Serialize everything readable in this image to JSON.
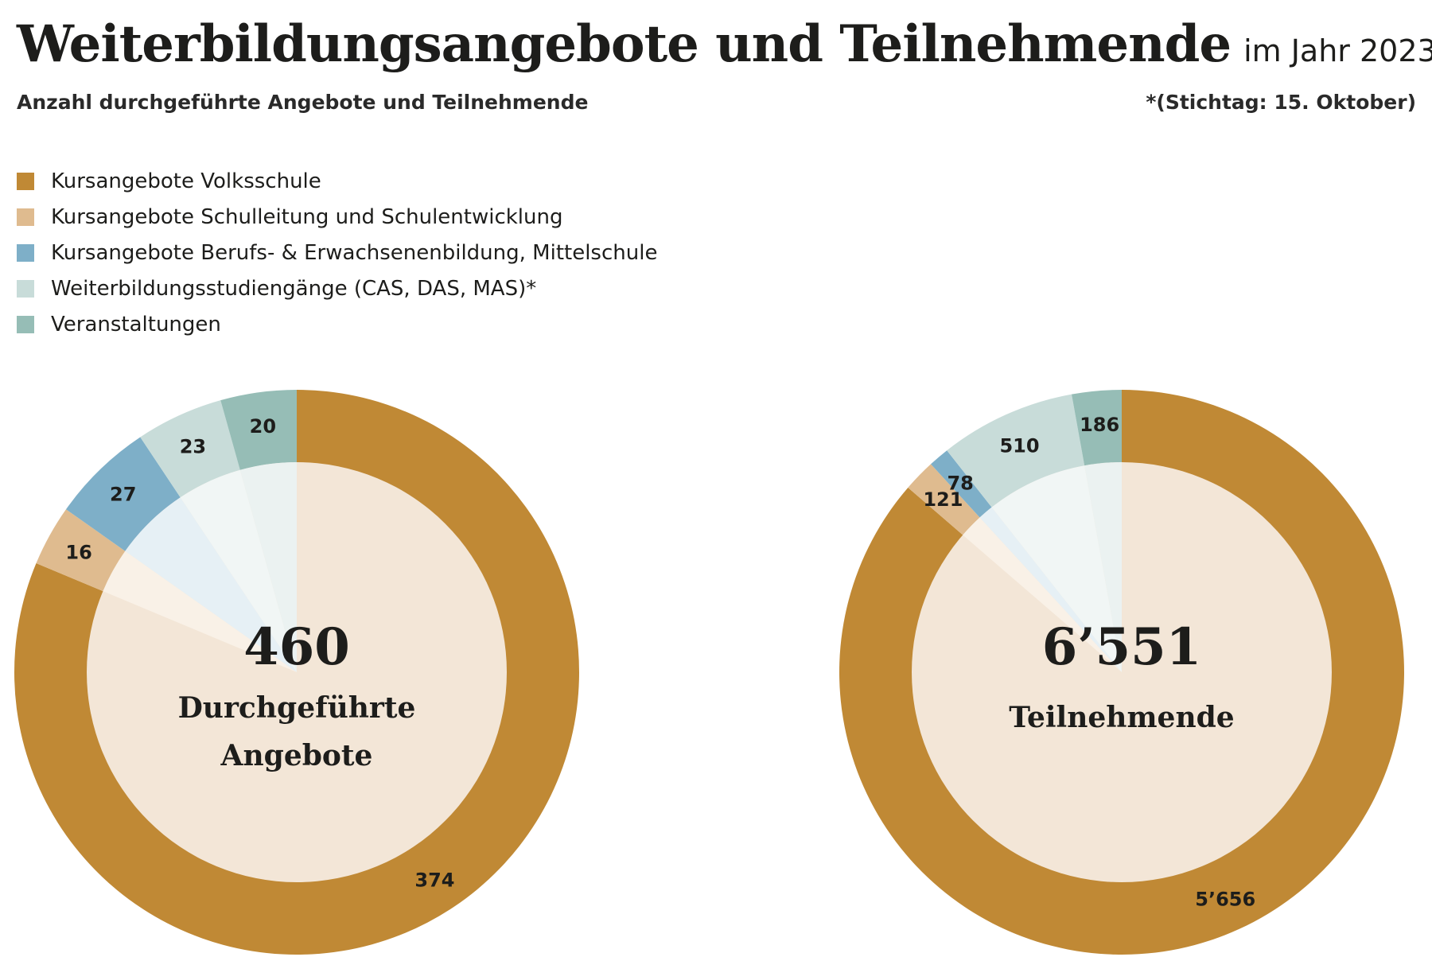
{
  "title": "Weiterbildungsangebote und Teilnehmende",
  "title_suffix": "im Jahr 2023",
  "subtitle": "Anzahl durchgeführte Angebote und Teilnehmende",
  "footnote": "*(Stichtag: 15. Oktober)",
  "legend": [
    {
      "label": "Kursangebote Volksschule",
      "color": "#c08935"
    },
    {
      "label": "Kursangebote Schulleitung und Schulentwicklung",
      "color": "#dfbb8f"
    },
    {
      "label": "Kursangebote Berufs- & Erwachsenenbildung, Mittelschule",
      "color": "#7eafc8"
    },
    {
      "label": "Weiterbildungsstudiengänge (CAS, DAS, MAS)*",
      "color": "#c8dcd9"
    },
    {
      "label": "Veranstaltungen",
      "color": "#96bdb6"
    }
  ],
  "colors": {
    "inner_base": "#f3e6d7",
    "inner_tints": [
      "#f3e6d7",
      "#f9f1e7",
      "#e6f0f5",
      "#f1f6f5",
      "#ebf2f1"
    ]
  },
  "chart_data": [
    {
      "type": "pie",
      "style": "donut",
      "total_label": "460",
      "caption": [
        "Durchgeführte",
        "Angebote"
      ],
      "categories": [
        "Kursangebote Volksschule",
        "Kursangebote Schulleitung und Schulentwicklung",
        "Kursangebote Berufs- & Erwachsenenbildung, Mittelschule",
        "Weiterbildungsstudiengänge (CAS, DAS, MAS)*",
        "Veranstaltungen"
      ],
      "values": [
        374,
        16,
        27,
        23,
        20
      ],
      "value_labels": [
        "374",
        "16",
        "27",
        "23",
        "20"
      ]
    },
    {
      "type": "pie",
      "style": "donut",
      "total_label": "6’551",
      "caption": [
        "Teilnehmende"
      ],
      "categories": [
        "Kursangebote Volksschule",
        "Kursangebote Schulleitung und Schulentwicklung",
        "Kursangebote Berufs- & Erwachsenenbildung, Mittelschule",
        "Weiterbildungsstudiengänge (CAS, DAS, MAS)*",
        "Veranstaltungen"
      ],
      "values": [
        5656,
        121,
        78,
        510,
        186
      ],
      "value_labels": [
        "5’656",
        "121",
        "78",
        "510",
        "186"
      ]
    }
  ]
}
